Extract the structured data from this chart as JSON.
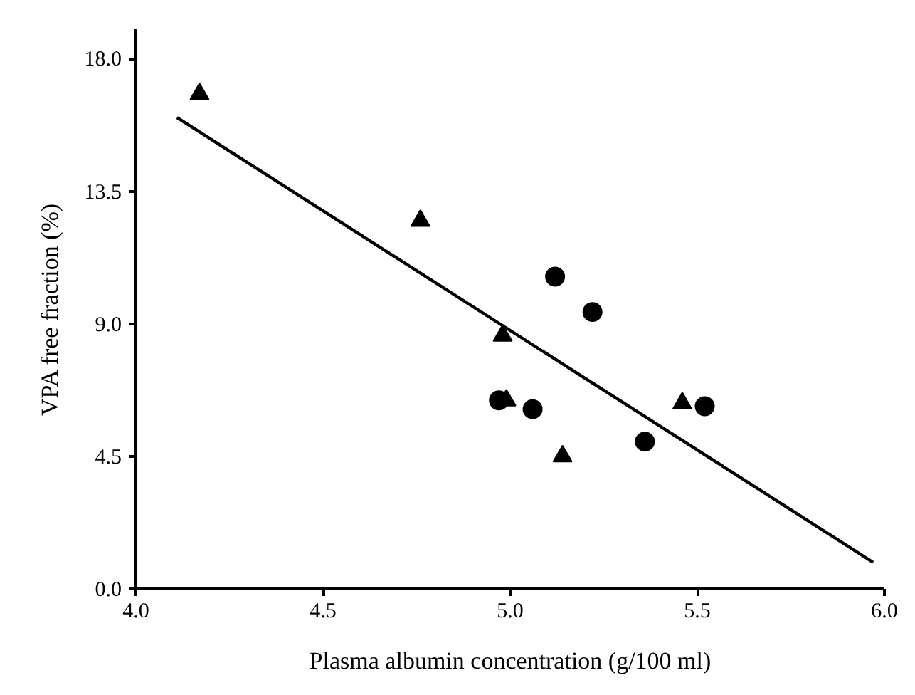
{
  "chart_data": {
    "type": "scatter",
    "xlabel": "Plasma albumin concentration (g/100 ml)",
    "ylabel": "VPA free fraction (%)",
    "xlim": [
      4.0,
      6.0
    ],
    "ylim": [
      0.0,
      19.0
    ],
    "xticks": [
      {
        "value": 4.0,
        "label": "4.0"
      },
      {
        "value": 4.5,
        "label": "4.5"
      },
      {
        "value": 5.0,
        "label": "5.0"
      },
      {
        "value": 5.5,
        "label": "5.5"
      },
      {
        "value": 6.0,
        "label": "6.0"
      }
    ],
    "yticks": [
      {
        "value": 0.0,
        "label": "0.0"
      },
      {
        "value": 4.5,
        "label": "4.5"
      },
      {
        "value": 9.0,
        "label": "9.0"
      },
      {
        "value": 13.5,
        "label": "13.5"
      },
      {
        "value": 18.0,
        "label": "18.0"
      }
    ],
    "grid": false,
    "series": [
      {
        "marker": "circle",
        "color": "#000000",
        "x": [
          4.97,
          5.06,
          5.12,
          5.22,
          5.36,
          5.52
        ],
        "values": [
          6.4,
          6.1,
          10.6,
          9.4,
          5.0,
          6.2
        ]
      },
      {
        "marker": "triangle",
        "color": "#000000",
        "x": [
          4.17,
          4.76,
          4.98,
          4.99,
          5.14,
          5.46
        ],
        "values": [
          16.8,
          12.5,
          8.6,
          6.4,
          4.5,
          6.3
        ]
      },
      {
        "type": "line",
        "line_style": "solid",
        "color": "#000000",
        "x": [
          4.11,
          5.97
        ],
        "values": [
          16.0,
          0.9
        ]
      }
    ]
  }
}
